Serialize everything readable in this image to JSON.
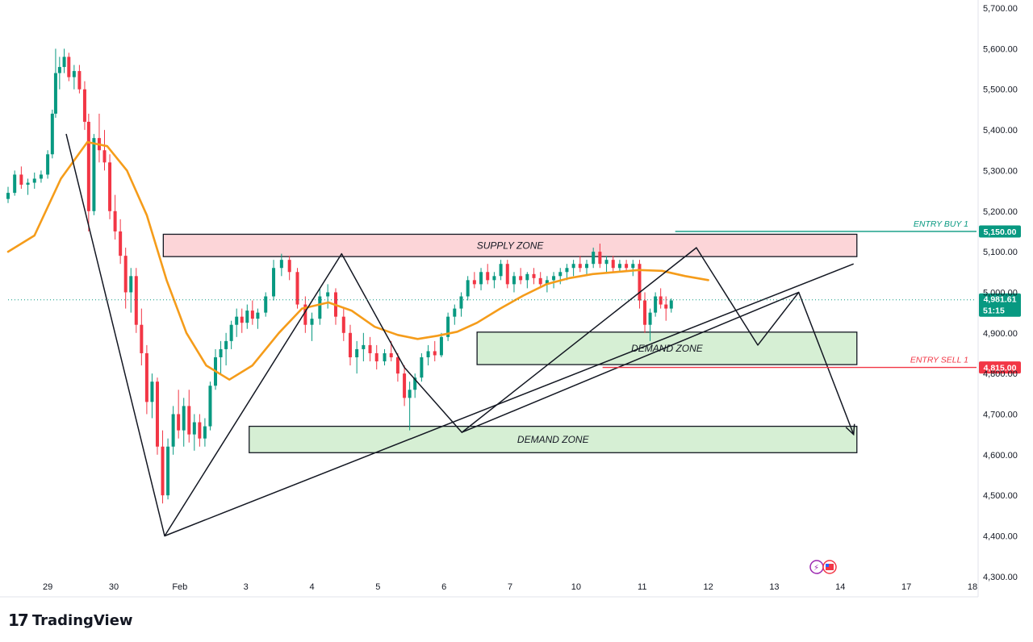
{
  "brand": {
    "logo_mark": "17",
    "name": "TradingView"
  },
  "colors": {
    "candle_up": "#089981",
    "candle_down": "#f23645",
    "ma_line": "#f59c1a",
    "supply_fill": "#fcd5d8",
    "demand_fill": "#d6efd4",
    "entry_buy": "#089981",
    "entry_sell": "#f23645",
    "price_badge": "#089981",
    "pattern_line": "#131722"
  },
  "chart_data": {
    "type": "candlestick",
    "title": "",
    "yaxis": {
      "ticks": [
        "5,700.00",
        "5,600.00",
        "5,500.00",
        "5,400.00",
        "5,300.00",
        "5,200.00",
        "5,100.00",
        "5,000.00",
        "4,900.00",
        "4,800.00",
        "4,700.00",
        "4,600.00",
        "4,500.00",
        "4,400.00",
        "4,300.00"
      ],
      "tick_values": [
        5700,
        5600,
        5500,
        5400,
        5300,
        5200,
        5100,
        5000,
        4900,
        4800,
        4700,
        4600,
        4500,
        4400,
        4300
      ],
      "range": [
        4250,
        5720
      ]
    },
    "xaxis": {
      "ticks": [
        "29",
        "30",
        "Feb",
        "3",
        "4",
        "5",
        "6",
        "7",
        "10",
        "11",
        "12",
        "13",
        "14",
        "17",
        "18"
      ],
      "tick_index": [
        0,
        1,
        2,
        3,
        4,
        5,
        6,
        7,
        8,
        9,
        10,
        11,
        12,
        13,
        14
      ],
      "range": [
        -0.6,
        14.0
      ]
    },
    "zones": [
      {
        "label": "SUPPLY ZONE",
        "kind": "supply",
        "x_start": 1.75,
        "x_end": 12.25,
        "y_top": 5143,
        "y_bottom": 5088
      },
      {
        "label": "DEMAND ZONE",
        "kind": "demand",
        "x_start": 6.5,
        "x_end": 12.25,
        "y_top": 4902,
        "y_bottom": 4822
      },
      {
        "label": "DEMAND ZONE",
        "kind": "demand",
        "x_start": 3.05,
        "x_end": 12.25,
        "y_top": 4670,
        "y_bottom": 4605
      }
    ],
    "entries": [
      {
        "label": "ENTRY BUY 1",
        "price": 5150,
        "price_label": "5,150.00",
        "kind": "buy",
        "x_start": 9.5
      },
      {
        "label": "ENTRY SELL 1",
        "price": 4815,
        "price_label": "4,815.00",
        "kind": "sell",
        "x_start": 8.4
      }
    ],
    "current_price": {
      "price": 4981.61,
      "price_label": "4,981.61",
      "countdown": "51:15"
    },
    "pattern_lines": [
      {
        "points": [
          [
            0.28,
            5390
          ],
          [
            1.77,
            4400
          ],
          [
            4.45,
            5095
          ],
          [
            5.4,
            4815
          ],
          [
            6.27,
            4655
          ],
          [
            9.82,
            5110
          ],
          [
            10.75,
            4870
          ],
          [
            11.37,
            5000
          ],
          [
            12.2,
            4650
          ]
        ],
        "arrow_end": true
      },
      {
        "points": [
          [
            1.77,
            4400
          ],
          [
            12.2,
            5070
          ]
        ]
      },
      {
        "points": [
          [
            6.27,
            4655
          ],
          [
            11.37,
            5000
          ]
        ]
      }
    ],
    "ma_series": [
      [
        -0.6,
        5100
      ],
      [
        -0.2,
        5140
      ],
      [
        0.2,
        5280
      ],
      [
        0.6,
        5370
      ],
      [
        0.9,
        5360
      ],
      [
        1.2,
        5300
      ],
      [
        1.5,
        5190
      ],
      [
        1.8,
        5030
      ],
      [
        2.1,
        4900
      ],
      [
        2.4,
        4820
      ],
      [
        2.75,
        4785
      ],
      [
        3.1,
        4820
      ],
      [
        3.5,
        4900
      ],
      [
        3.85,
        4960
      ],
      [
        4.25,
        4975
      ],
      [
        4.6,
        4955
      ],
      [
        4.95,
        4915
      ],
      [
        5.3,
        4895
      ],
      [
        5.6,
        4885
      ],
      [
        5.9,
        4893
      ],
      [
        6.2,
        4903
      ],
      [
        6.5,
        4925
      ],
      [
        6.85,
        4960
      ],
      [
        7.2,
        4992
      ],
      [
        7.55,
        5020
      ],
      [
        7.9,
        5035
      ],
      [
        8.25,
        5045
      ],
      [
        8.6,
        5050
      ],
      [
        8.95,
        5055
      ],
      [
        9.3,
        5053
      ],
      [
        9.65,
        5040
      ],
      [
        10.0,
        5030
      ]
    ],
    "candles": [
      [
        -0.6,
        5230,
        5260,
        5220,
        5245
      ],
      [
        -0.5,
        5245,
        5300,
        5238,
        5290
      ],
      [
        -0.4,
        5290,
        5310,
        5255,
        5265
      ],
      [
        -0.3,
        5265,
        5280,
        5240,
        5270
      ],
      [
        -0.2,
        5270,
        5295,
        5255,
        5280
      ],
      [
        -0.1,
        5280,
        5300,
        5270,
        5290
      ],
      [
        0.0,
        5290,
        5350,
        5280,
        5340
      ],
      [
        0.07,
        5340,
        5450,
        5330,
        5440
      ],
      [
        0.12,
        5440,
        5600,
        5430,
        5540
      ],
      [
        0.18,
        5540,
        5580,
        5500,
        5555
      ],
      [
        0.25,
        5555,
        5600,
        5540,
        5580
      ],
      [
        0.32,
        5580,
        5590,
        5520,
        5530
      ],
      [
        0.4,
        5530,
        5560,
        5500,
        5545
      ],
      [
        0.48,
        5545,
        5560,
        5490,
        5500
      ],
      [
        0.56,
        5500,
        5520,
        5400,
        5420
      ],
      [
        0.62,
        5420,
        5440,
        5150,
        5200
      ],
      [
        0.7,
        5200,
        5390,
        5190,
        5380
      ],
      [
        0.78,
        5380,
        5440,
        5320,
        5350
      ],
      [
        0.86,
        5350,
        5400,
        5300,
        5320
      ],
      [
        0.94,
        5320,
        5340,
        5180,
        5200
      ],
      [
        1.02,
        5200,
        5240,
        5130,
        5150
      ],
      [
        1.1,
        5150,
        5180,
        5070,
        5090
      ],
      [
        1.18,
        5090,
        5110,
        4960,
        5000
      ],
      [
        1.26,
        5000,
        5060,
        4950,
        5040
      ],
      [
        1.34,
        5040,
        5060,
        4900,
        4920
      ],
      [
        1.42,
        4920,
        4960,
        4820,
        4850
      ],
      [
        1.5,
        4850,
        4870,
        4700,
        4730
      ],
      [
        1.58,
        4730,
        4800,
        4690,
        4780
      ],
      [
        1.66,
        4780,
        4790,
        4600,
        4620
      ],
      [
        1.74,
        4620,
        4660,
        4480,
        4500
      ],
      [
        1.82,
        4500,
        4640,
        4490,
        4620
      ],
      [
        1.9,
        4620,
        4720,
        4600,
        4700
      ],
      [
        1.98,
        4700,
        4760,
        4640,
        4660
      ],
      [
        2.06,
        4660,
        4740,
        4620,
        4720
      ],
      [
        2.14,
        4720,
        4760,
        4630,
        4650
      ],
      [
        2.22,
        4650,
        4700,
        4610,
        4680
      ],
      [
        2.3,
        4680,
        4700,
        4620,
        4640
      ],
      [
        2.38,
        4640,
        4690,
        4620,
        4670
      ],
      [
        2.46,
        4670,
        4780,
        4660,
        4770
      ],
      [
        2.54,
        4770,
        4860,
        4760,
        4840
      ],
      [
        2.62,
        4840,
        4880,
        4800,
        4860
      ],
      [
        2.7,
        4860,
        4900,
        4820,
        4880
      ],
      [
        2.78,
        4880,
        4930,
        4860,
        4920
      ],
      [
        2.86,
        4920,
        4960,
        4890,
        4940
      ],
      [
        2.94,
        4940,
        4960,
        4900,
        4925
      ],
      [
        3.02,
        4925,
        4970,
        4910,
        4955
      ],
      [
        3.1,
        4955,
        4980,
        4920,
        4935
      ],
      [
        3.18,
        4935,
        4960,
        4910,
        4950
      ],
      [
        3.3,
        4950,
        5000,
        4940,
        4990
      ],
      [
        3.42,
        4990,
        5080,
        4980,
        5060
      ],
      [
        3.54,
        5060,
        5095,
        5040,
        5080
      ],
      [
        3.66,
        5080,
        5090,
        5030,
        5050
      ],
      [
        3.78,
        5050,
        5060,
        4960,
        4970
      ],
      [
        3.9,
        4970,
        4990,
        4900,
        4920
      ],
      [
        4.0,
        4920,
        4950,
        4880,
        4935
      ],
      [
        4.12,
        4935,
        5010,
        4920,
        4990
      ],
      [
        4.24,
        4990,
        5020,
        4960,
        5000
      ],
      [
        4.36,
        5000,
        5010,
        4920,
        4940
      ],
      [
        4.48,
        4940,
        4960,
        4880,
        4900
      ],
      [
        4.58,
        4900,
        4920,
        4820,
        4840
      ],
      [
        4.68,
        4840,
        4880,
        4800,
        4860
      ],
      [
        4.78,
        4860,
        4900,
        4830,
        4870
      ],
      [
        4.88,
        4870,
        4890,
        4830,
        4850
      ],
      [
        4.98,
        4850,
        4870,
        4810,
        4830
      ],
      [
        5.1,
        4830,
        4860,
        4820,
        4850
      ],
      [
        5.2,
        4850,
        4880,
        4830,
        4840
      ],
      [
        5.3,
        4840,
        4850,
        4780,
        4800
      ],
      [
        5.4,
        4800,
        4820,
        4720,
        4740
      ],
      [
        5.48,
        4740,
        4780,
        4660,
        4760
      ],
      [
        5.56,
        4760,
        4800,
        4740,
        4790
      ],
      [
        5.66,
        4790,
        4850,
        4780,
        4840
      ],
      [
        5.76,
        4840,
        4870,
        4820,
        4855
      ],
      [
        5.86,
        4855,
        4880,
        4830,
        4845
      ],
      [
        5.96,
        4845,
        4900,
        4840,
        4890
      ],
      [
        6.06,
        4890,
        4950,
        4880,
        4940
      ],
      [
        6.16,
        4940,
        4970,
        4920,
        4960
      ],
      [
        6.26,
        4960,
        5000,
        4940,
        4990
      ],
      [
        6.36,
        4990,
        5040,
        4980,
        5030
      ],
      [
        6.46,
        5030,
        5050,
        5010,
        5020
      ],
      [
        6.56,
        5020,
        5060,
        5005,
        5050
      ],
      [
        6.66,
        5050,
        5070,
        5020,
        5030
      ],
      [
        6.76,
        5030,
        5050,
        5010,
        5040
      ],
      [
        6.86,
        5040,
        5080,
        5030,
        5070
      ],
      [
        6.96,
        5070,
        5080,
        5010,
        5020
      ],
      [
        7.06,
        5020,
        5050,
        5000,
        5040
      ],
      [
        7.16,
        5040,
        5060,
        5020,
        5030
      ],
      [
        7.26,
        5030,
        5050,
        5010,
        5045
      ],
      [
        7.36,
        5045,
        5060,
        5020,
        5035
      ],
      [
        7.46,
        5035,
        5050,
        5010,
        5020
      ],
      [
        7.56,
        5020,
        5040,
        5000,
        5030
      ],
      [
        7.66,
        5030,
        5050,
        5010,
        5040
      ],
      [
        7.76,
        5040,
        5060,
        5020,
        5050
      ],
      [
        7.86,
        5050,
        5070,
        5030,
        5060
      ],
      [
        7.96,
        5060,
        5080,
        5040,
        5070
      ],
      [
        8.06,
        5070,
        5090,
        5050,
        5060
      ],
      [
        8.16,
        5060,
        5080,
        5040,
        5070
      ],
      [
        8.26,
        5070,
        5110,
        5060,
        5100
      ],
      [
        8.36,
        5100,
        5120,
        5060,
        5070
      ],
      [
        8.46,
        5070,
        5090,
        5050,
        5080
      ],
      [
        8.56,
        5080,
        5090,
        5050,
        5060
      ],
      [
        8.66,
        5060,
        5080,
        5050,
        5070
      ],
      [
        8.76,
        5070,
        5080,
        5050,
        5060
      ],
      [
        8.86,
        5060,
        5080,
        5040,
        5070
      ],
      [
        8.96,
        5070,
        5080,
        4960,
        4980
      ],
      [
        9.04,
        4980,
        5000,
        4900,
        4920
      ],
      [
        9.12,
        4920,
        4960,
        4880,
        4950
      ],
      [
        9.2,
        4950,
        5000,
        4940,
        4990
      ],
      [
        9.28,
        4990,
        5010,
        4960,
        4970
      ],
      [
        9.36,
        4970,
        4990,
        4930,
        4960
      ],
      [
        9.44,
        4960,
        4985,
        4950,
        4980
      ]
    ]
  }
}
